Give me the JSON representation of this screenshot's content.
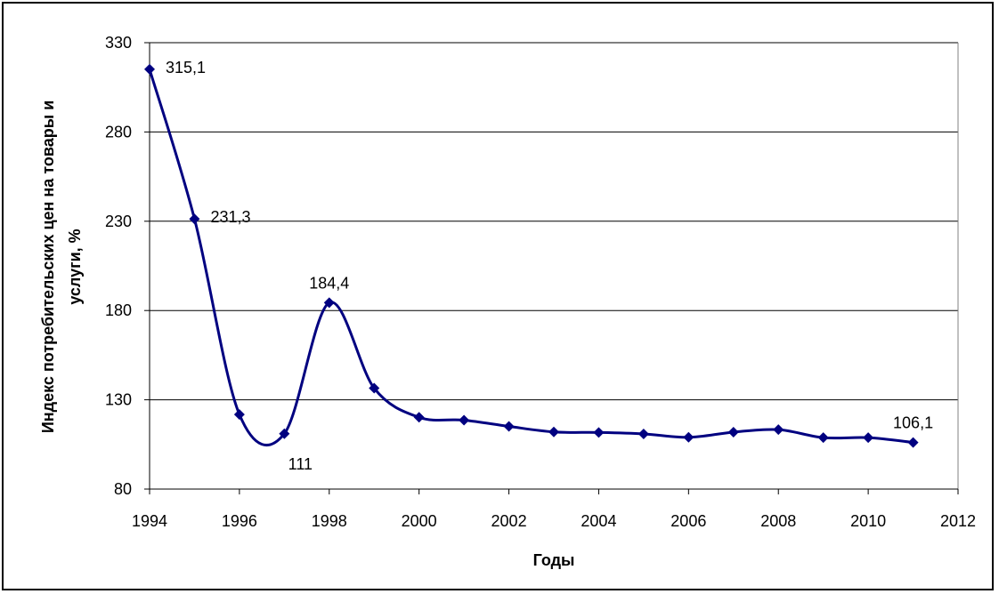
{
  "chart_data": {
    "type": "line",
    "title": "",
    "xlabel": "Годы",
    "ylabel_lines": [
      "Индекс потребительских цен на товары и",
      "услуги, %"
    ],
    "xlim": [
      1994,
      2012
    ],
    "ylim": [
      80,
      330
    ],
    "xticks": [
      "1994",
      "1996",
      "1998",
      "2000",
      "2002",
      "2004",
      "2006",
      "2008",
      "2010",
      "2012"
    ],
    "yticks": [
      "80",
      "130",
      "180",
      "230",
      "280",
      "330"
    ],
    "grid": "horizontal",
    "legend": "none",
    "line_color": "#000080",
    "series": [
      {
        "x": [
          1994,
          1995,
          1996,
          1997,
          1998,
          1999,
          2000,
          2001,
          2002,
          2003,
          2004,
          2005,
          2006,
          2007,
          2008,
          2009,
          2010,
          2011
        ],
        "values": [
          315.1,
          231.3,
          121.8,
          111,
          184.4,
          136.5,
          120.2,
          118.6,
          115.1,
          112,
          111.7,
          110.9,
          109,
          111.9,
          113.3,
          108.8,
          108.8,
          106.1
        ]
      }
    ],
    "data_labels": [
      {
        "x": 1994,
        "text": "315,1",
        "pos": "right"
      },
      {
        "x": 1995,
        "text": "231,3",
        "pos": "right"
      },
      {
        "x": 1997,
        "text": "111",
        "pos": "below"
      },
      {
        "x": 1998,
        "text": "184,4",
        "pos": "above"
      },
      {
        "x": 2011,
        "text": "106,1",
        "pos": "above"
      }
    ]
  }
}
